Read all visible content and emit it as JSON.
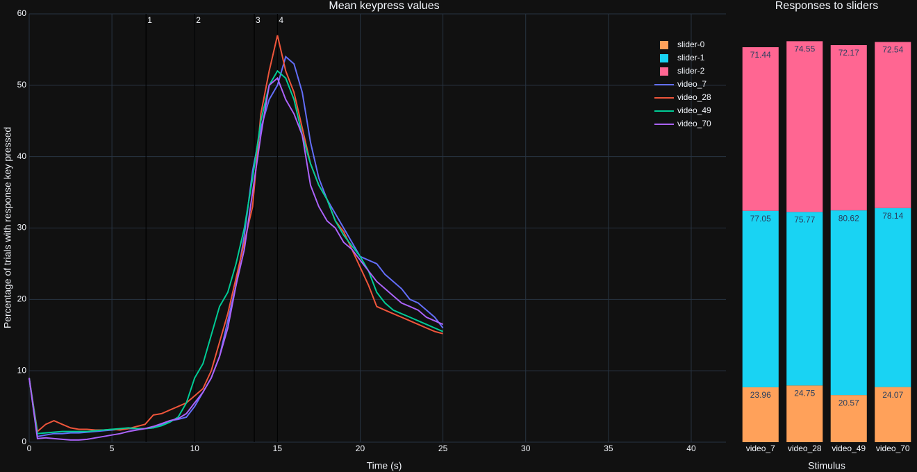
{
  "chart_data": [
    {
      "type": "line",
      "title": "Mean keypress values",
      "x_label": "Time (s)",
      "y_label": "Percentage of trials with response key pressed",
      "x": [
        0,
        0.5,
        1,
        1.5,
        2,
        2.5,
        3,
        3.5,
        4,
        4.5,
        5,
        5.5,
        6,
        6.5,
        7,
        7.5,
        8,
        8.5,
        9,
        9.5,
        10,
        10.5,
        11,
        11.5,
        12,
        12.5,
        13,
        13.5,
        14,
        14.5,
        15,
        15.5,
        16,
        16.5,
        17,
        17.5,
        18,
        18.5,
        19,
        19.5,
        20,
        20.5,
        21,
        21.5,
        22,
        22.5,
        23,
        23.5,
        24,
        24.5,
        25
      ],
      "series": [
        {
          "name": "video_7",
          "color": "#636efa",
          "values": [
            9,
            0.8,
            1.0,
            1.2,
            1.2,
            1.3,
            1.3,
            1.4,
            1.5,
            1.6,
            1.7,
            1.8,
            1.9,
            1.9,
            1.9,
            2.0,
            2.5,
            3.0,
            3.2,
            3.5,
            5.0,
            7.0,
            9.0,
            12.0,
            17.0,
            22.0,
            29.0,
            38.0,
            44.0,
            48.0,
            50.0,
            54.0,
            53.0,
            49.0,
            42.0,
            37.0,
            34.0,
            32.0,
            30.0,
            28.0,
            26.0,
            25.5,
            25.0,
            23.5,
            22.5,
            21.5,
            20.0,
            19.5,
            18.5,
            17.5,
            16.0
          ]
        },
        {
          "name": "video_28",
          "color": "#ef553b",
          "values": [
            9,
            1.5,
            2.5,
            3.0,
            2.5,
            2.0,
            1.8,
            1.8,
            1.7,
            1.7,
            1.8,
            1.7,
            1.9,
            2.2,
            2.5,
            3.8,
            4.0,
            4.5,
            5.0,
            5.5,
            6.5,
            7.5,
            10.0,
            14.0,
            18.0,
            23.0,
            28.0,
            33.0,
            46.0,
            52.0,
            57.0,
            52.0,
            49.0,
            44.0,
            39.0,
            36.0,
            34.0,
            31.0,
            29.5,
            27.0,
            24.5,
            22.0,
            19.0,
            18.5,
            18.0,
            17.5,
            17.0,
            16.5,
            16.0,
            15.5,
            15.2
          ]
        },
        {
          "name": "video_49",
          "color": "#00cc96",
          "values": [
            9,
            1.2,
            1.3,
            1.4,
            1.5,
            1.5,
            1.5,
            1.5,
            1.6,
            1.7,
            1.8,
            1.9,
            2.0,
            1.9,
            1.9,
            2.0,
            2.3,
            2.8,
            3.5,
            5.5,
            9.0,
            11.0,
            15.0,
            19.0,
            21.0,
            25.0,
            30.0,
            37.0,
            45.0,
            50.0,
            52.0,
            51.0,
            48.0,
            43.0,
            39.0,
            36.0,
            34.0,
            31.0,
            29.0,
            27.5,
            26.0,
            24.0,
            21.0,
            19.5,
            18.5,
            18.0,
            17.5,
            17.0,
            16.5,
            16.0,
            15.5
          ]
        },
        {
          "name": "video_70",
          "color": "#ab63fa",
          "values": [
            9,
            0.5,
            0.6,
            0.5,
            0.4,
            0.3,
            0.3,
            0.4,
            0.6,
            0.8,
            1.0,
            1.2,
            1.5,
            1.7,
            1.9,
            2.2,
            2.6,
            3.0,
            3.3,
            4.0,
            5.5,
            7.0,
            9.0,
            12.0,
            16.0,
            22.0,
            27.0,
            35.0,
            43.0,
            50.0,
            51.0,
            48.0,
            46.0,
            43.0,
            36.0,
            33.0,
            31.0,
            30.0,
            28.0,
            27.0,
            25.5,
            24.0,
            22.5,
            21.5,
            20.5,
            19.5,
            19.0,
            18.5,
            17.5,
            17.0,
            16.5
          ]
        }
      ],
      "vlines": [
        {
          "x": 7.06,
          "label": "1"
        },
        {
          "x": 10.0,
          "label": "2"
        },
        {
          "x": 13.6,
          "label": "3"
        },
        {
          "x": 15.0,
          "label": "4"
        }
      ],
      "xlim": [
        0,
        42.1
      ],
      "xticks": [
        0,
        5,
        10,
        15,
        20,
        25,
        30,
        35,
        40
      ],
      "ylim": [
        0,
        60
      ],
      "yticks": [
        0,
        10,
        20,
        30,
        40,
        50,
        60
      ],
      "grid": true
    },
    {
      "type": "stacked_bar",
      "title": "Responses to sliders",
      "x_label": "Stimulus",
      "categories": [
        "video_7",
        "video_28",
        "video_49",
        "video_70"
      ],
      "series": [
        {
          "name": "slider-0",
          "color": "#ffa15a",
          "values": [
            23.96,
            24.75,
            20.57,
            24.07
          ]
        },
        {
          "name": "slider-1",
          "color": "#19d3f3",
          "values": [
            77.05,
            75.77,
            80.62,
            78.14
          ]
        },
        {
          "name": "slider-2",
          "color": "#ff6692",
          "values": [
            71.44,
            74.55,
            72.17,
            72.54
          ]
        }
      ],
      "ylim": [
        0,
        187
      ]
    }
  ]
}
